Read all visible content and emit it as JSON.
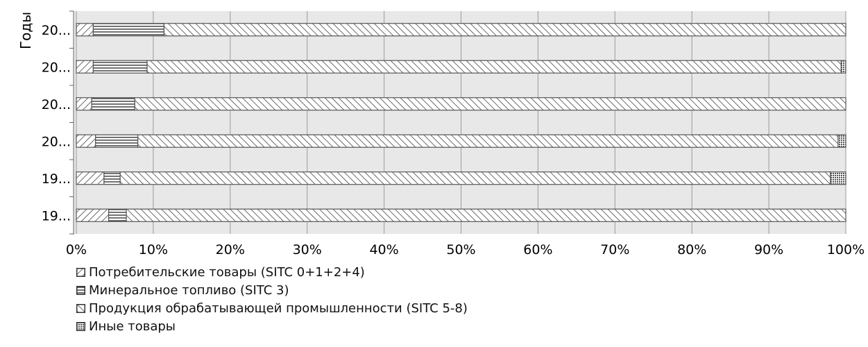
{
  "chart_data": {
    "type": "bar",
    "orientation": "horizontal",
    "stacked": "percent",
    "ylabel": "Годы",
    "categories": [
      "20...",
      "20...",
      "20...",
      "20...",
      "19...",
      "19..."
    ],
    "xticks": [
      "0%",
      "10%",
      "20%",
      "30%",
      "40%",
      "50%",
      "60%",
      "70%",
      "80%",
      "90%",
      "100%"
    ],
    "xlim": [
      0,
      100
    ],
    "grid": true,
    "legend_position": "bottom-left",
    "series": [
      {
        "name": "Потребительские товары (SITC 0+1+2+4)",
        "pattern": "diagonal-forward",
        "values": [
          2.2,
          2.2,
          2.0,
          2.5,
          3.6,
          4.2
        ]
      },
      {
        "name": "Минеральное топливо (SITC 3)",
        "pattern": "horizontal",
        "values": [
          9.2,
          7.0,
          5.6,
          5.5,
          2.1,
          2.3
        ]
      },
      {
        "name": "Продукция обрабатывающей промышленности (SITC 5-8)",
        "pattern": "diagonal-backward",
        "values": [
          88.6,
          90.2,
          92.4,
          91.0,
          92.3,
          93.5
        ]
      },
      {
        "name": "Иные товары",
        "pattern": "crosshatch",
        "values": [
          0.0,
          0.6,
          0.0,
          1.0,
          2.0,
          0.0
        ]
      }
    ]
  }
}
